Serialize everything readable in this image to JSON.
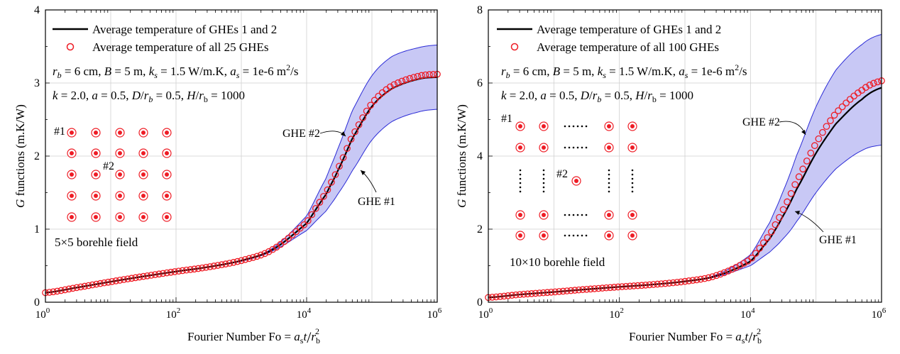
{
  "chart_data": [
    {
      "type": "line",
      "ylabel": "G functions (m.K/W)",
      "xlabel": "Fourier Number Fo = a_s t / r_b^2",
      "x_scale": "log",
      "xlim": [
        1,
        1000000
      ],
      "ylim": [
        0,
        4
      ],
      "x_tick_labels": [
        "10^0",
        "10^2",
        "10^4",
        "10^6"
      ],
      "y_tick_labels": [
        "0",
        "1",
        "2",
        "3",
        "4"
      ],
      "grid": true,
      "legend_position": "top-left",
      "legend": {
        "line_label": "Average temperature of GHEs 1 and 2",
        "marker_label": "Average temperature of all 25 GHEs"
      },
      "params_line1": "r_b = 6 cm, B = 5 m, k_s = 1.5 W/m.K, a_s = 1e-6 m^2/s",
      "params_line2": "k = 2.0, a = 0.5, D/r_b = 0.5, H/r_b = 1000",
      "annotations": {
        "ghe2": "GHE #2",
        "ghe1": "GHE #1",
        "field_label": "5×5 borehle field",
        "inset_id1": "#1",
        "inset_id2": "#2"
      },
      "series": [
        {
          "name": "Average temperature of GHEs 1 and 2",
          "style": "line",
          "color": "#000000",
          "x": [
            1,
            3,
            10,
            30,
            100,
            300,
            1000,
            3000,
            10000,
            20000,
            30000,
            50000,
            100000,
            200000,
            500000,
            1000000
          ],
          "y": [
            0.13,
            0.2,
            0.28,
            0.35,
            0.42,
            0.48,
            0.57,
            0.72,
            1.08,
            1.48,
            1.8,
            2.24,
            2.68,
            2.92,
            3.05,
            3.08
          ]
        },
        {
          "name": "Average temperature of all 25 GHEs",
          "style": "open-circle",
          "color": "#ee1c25",
          "x": [
            1,
            3,
            10,
            30,
            100,
            300,
            1000,
            3000,
            10000,
            20000,
            30000,
            50000,
            100000,
            200000,
            500000,
            1000000
          ],
          "y": [
            0.13,
            0.2,
            0.28,
            0.35,
            0.42,
            0.48,
            0.57,
            0.72,
            1.09,
            1.5,
            1.82,
            2.27,
            2.72,
            2.96,
            3.09,
            3.12
          ]
        },
        {
          "name": "GHE #2",
          "style": "band-upper",
          "color": "#2b2bd6",
          "x": [
            1,
            3,
            10,
            30,
            100,
            300,
            1000,
            3000,
            10000,
            20000,
            30000,
            50000,
            100000,
            200000,
            500000,
            1000000
          ],
          "y": [
            0.13,
            0.2,
            0.28,
            0.35,
            0.42,
            0.48,
            0.57,
            0.74,
            1.18,
            1.7,
            2.1,
            2.62,
            3.1,
            3.36,
            3.48,
            3.52
          ]
        },
        {
          "name": "GHE #1",
          "style": "band-lower",
          "color": "#2b2bd6",
          "x": [
            1,
            3,
            10,
            30,
            100,
            300,
            1000,
            3000,
            10000,
            20000,
            30000,
            50000,
            100000,
            200000,
            500000,
            1000000
          ],
          "y": [
            0.13,
            0.2,
            0.28,
            0.35,
            0.42,
            0.48,
            0.56,
            0.7,
            0.98,
            1.25,
            1.48,
            1.8,
            2.22,
            2.47,
            2.6,
            2.64
          ]
        }
      ],
      "band_fill_color": "#c8c8f5"
    },
    {
      "type": "line",
      "ylabel": "G functions (m.K/W)",
      "xlabel": "Fourier Number Fo = a_s t / r_b^2",
      "x_scale": "log",
      "xlim": [
        1,
        1000000
      ],
      "ylim": [
        0,
        8
      ],
      "x_tick_labels": [
        "10^0",
        "10^2",
        "10^4",
        "10^6"
      ],
      "y_tick_labels": [
        "0",
        "2",
        "4",
        "6",
        "8"
      ],
      "grid": true,
      "legend_position": "top-left",
      "legend": {
        "line_label": "Average temperature of GHEs 1 and 2",
        "marker_label": "Average temperature of all 100 GHEs"
      },
      "params_line1": "r_b = 6 cm, B = 5 m, k_s = 1.5 W/m.K, a_s = 1e-6 m^2/s",
      "params_line2": "k = 2.0, a = 0.5, D/r_b = 0.5, H/r_b = 1000",
      "annotations": {
        "ghe2": "GHE #2",
        "ghe1": "GHE #1",
        "field_label": "10×10 borehle field",
        "inset_id1": "#1",
        "inset_id2": "#2"
      },
      "series": [
        {
          "name": "Average temperature of GHEs 1 and 2",
          "style": "line",
          "color": "#000000",
          "x": [
            1,
            3,
            10,
            30,
            100,
            300,
            1000,
            3000,
            10000,
            20000,
            30000,
            50000,
            100000,
            200000,
            500000,
            1000000
          ],
          "y": [
            0.13,
            0.21,
            0.28,
            0.35,
            0.42,
            0.48,
            0.57,
            0.72,
            1.12,
            1.75,
            2.3,
            3.08,
            4.08,
            4.88,
            5.55,
            5.87
          ]
        },
        {
          "name": "Average temperature of all 100 GHEs",
          "style": "open-circle",
          "color": "#ee1c25",
          "x": [
            1,
            3,
            10,
            30,
            100,
            300,
            1000,
            3000,
            10000,
            20000,
            30000,
            50000,
            100000,
            200000,
            500000,
            1000000
          ],
          "y": [
            0.13,
            0.21,
            0.28,
            0.35,
            0.42,
            0.48,
            0.57,
            0.73,
            1.17,
            1.86,
            2.46,
            3.3,
            4.35,
            5.17,
            5.8,
            6.06
          ]
        },
        {
          "name": "GHE #2",
          "style": "band-upper",
          "color": "#2b2bd6",
          "x": [
            1,
            3,
            10,
            30,
            100,
            300,
            1000,
            3000,
            10000,
            20000,
            30000,
            50000,
            100000,
            200000,
            500000,
            1000000
          ],
          "y": [
            0.13,
            0.21,
            0.28,
            0.35,
            0.42,
            0.48,
            0.57,
            0.75,
            1.3,
            2.2,
            2.95,
            4.0,
            5.35,
            6.35,
            7.05,
            7.33
          ]
        },
        {
          "name": "GHE #1",
          "style": "band-lower",
          "color": "#2b2bd6",
          "x": [
            1,
            3,
            10,
            30,
            100,
            300,
            1000,
            3000,
            10000,
            20000,
            30000,
            50000,
            100000,
            200000,
            500000,
            1000000
          ],
          "y": [
            0.13,
            0.21,
            0.28,
            0.35,
            0.42,
            0.48,
            0.56,
            0.7,
            1.0,
            1.38,
            1.7,
            2.2,
            3.0,
            3.65,
            4.15,
            4.3
          ]
        }
      ],
      "band_fill_color": "#c8c8f5"
    }
  ]
}
